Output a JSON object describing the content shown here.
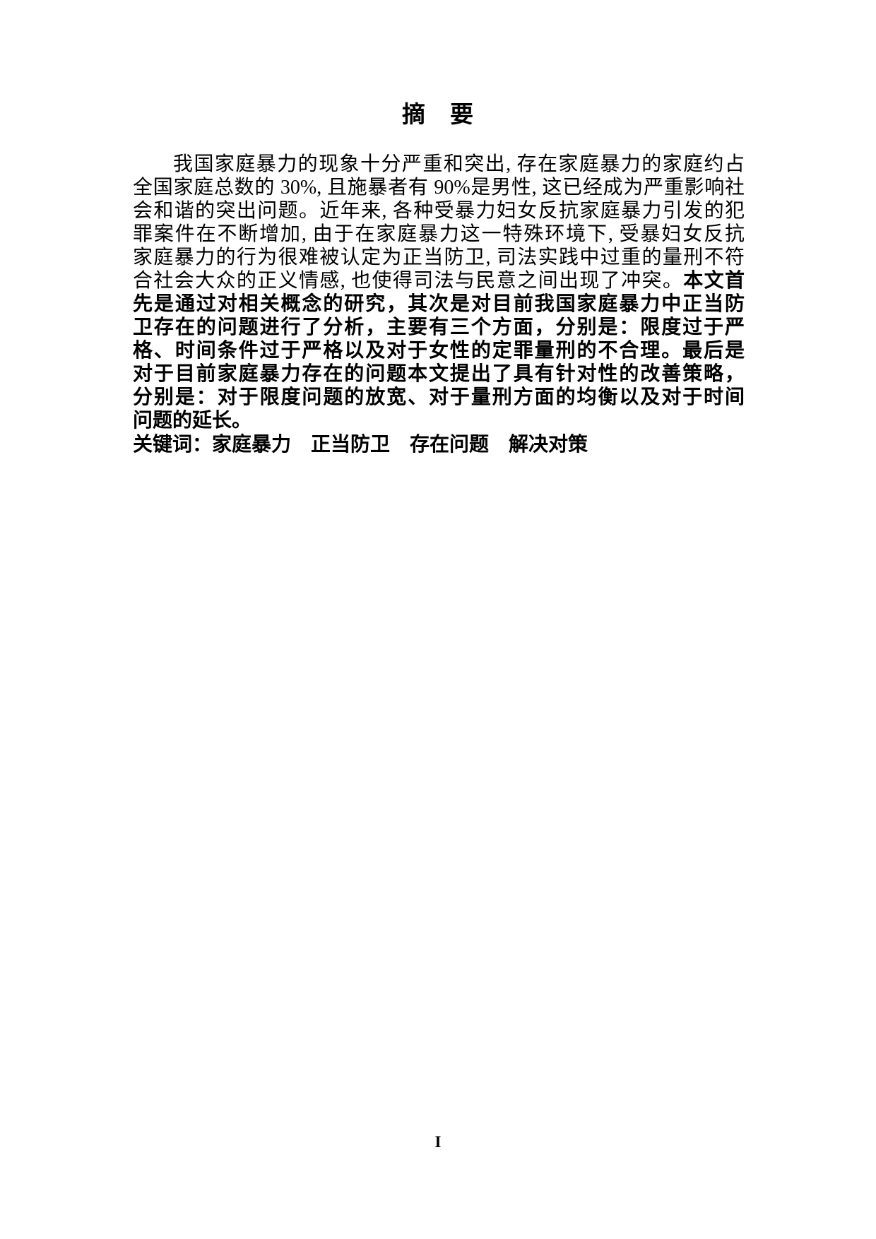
{
  "page": {
    "title": "摘　要",
    "page_number": "I"
  },
  "abstract": {
    "lines": [
      {
        "indent": true,
        "justify": true,
        "segments": [
          {
            "bold": false,
            "text": "我国家庭暴力的现象十分严重和突出, 存在家庭暴力的家庭约占"
          }
        ]
      },
      {
        "indent": false,
        "justify": true,
        "segments": [
          {
            "bold": false,
            "text": "全国家庭总数的 30%, 且施暴者有 90%是男性, 这已经成为严重影响社"
          }
        ]
      },
      {
        "indent": false,
        "justify": true,
        "segments": [
          {
            "bold": false,
            "text": "会和谐的突出问题。近年来, 各种受暴力妇女反抗家庭暴力引发的犯"
          }
        ]
      },
      {
        "indent": false,
        "justify": true,
        "segments": [
          {
            "bold": false,
            "text": "罪案件在不断增加, 由于在家庭暴力这一特殊环境下, 受暴妇女反抗"
          }
        ]
      },
      {
        "indent": false,
        "justify": true,
        "segments": [
          {
            "bold": false,
            "text": "家庭暴力的行为很难被认定为正当防卫, 司法实践中过重的量刑不符"
          }
        ]
      },
      {
        "indent": false,
        "justify": true,
        "segments": [
          {
            "bold": false,
            "text": "合社会大众的正义情感, 也使得司法与民意之间出现了冲突。"
          },
          {
            "bold": true,
            "text": "本文首"
          }
        ]
      },
      {
        "indent": false,
        "justify": true,
        "segments": [
          {
            "bold": true,
            "text": "先是通过对相关概念的研究，其次是对目前我国家庭暴力中正当防"
          }
        ]
      },
      {
        "indent": false,
        "justify": true,
        "segments": [
          {
            "bold": true,
            "text": "卫存在的问题进行了分析，主要有三个方面，分别是：限度过于严"
          }
        ]
      },
      {
        "indent": false,
        "justify": true,
        "segments": [
          {
            "bold": true,
            "text": "格、时间条件过于严格以及对于女性的定罪量刑的不合理。最后是"
          }
        ]
      },
      {
        "indent": false,
        "justify": true,
        "segments": [
          {
            "bold": true,
            "text": "对于目前家庭暴力存在的问题本文提出了具有针对性的改善策略，"
          }
        ]
      },
      {
        "indent": false,
        "justify": true,
        "segments": [
          {
            "bold": true,
            "text": "分别是：对于限度问题的放宽、对于量刑方面的均衡以及对于时间"
          }
        ]
      },
      {
        "indent": false,
        "justify": false,
        "segments": [
          {
            "bold": true,
            "text": "问题的延长。"
          }
        ]
      },
      {
        "indent": false,
        "justify": false,
        "keywords": true,
        "segments": [
          {
            "bold": true,
            "heading": true,
            "text": "关键词："
          },
          {
            "bold": true,
            "text": "家庭暴力　正当防卫　存在问题　解决对策"
          }
        ]
      }
    ]
  }
}
